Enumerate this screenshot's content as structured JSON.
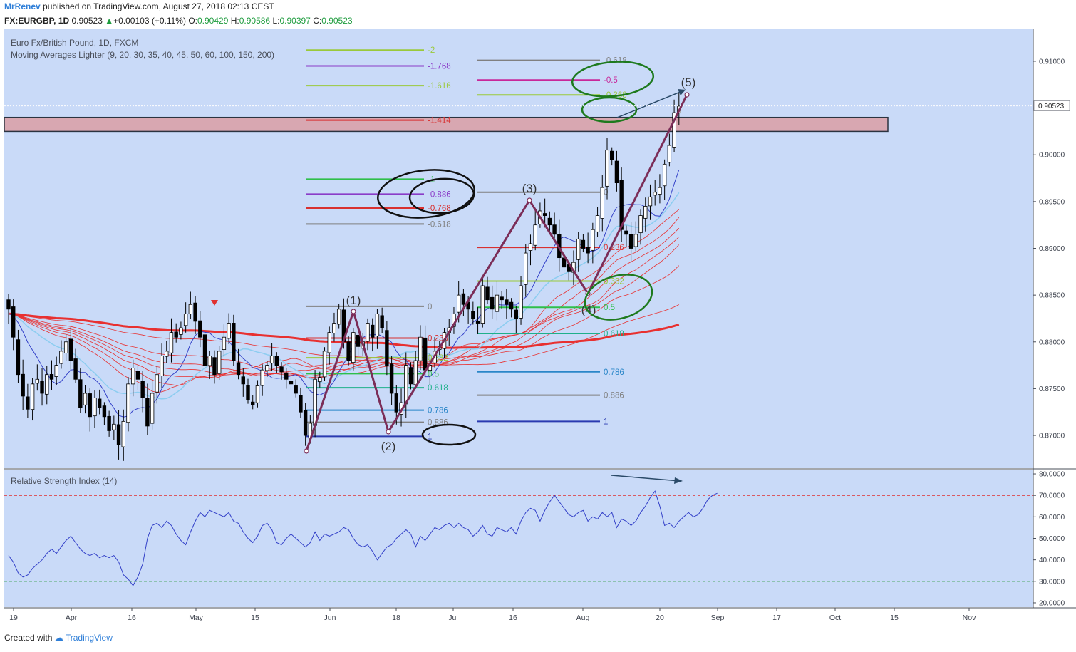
{
  "header": {
    "author": "MrRenev",
    "published_text": "published on TradingView.com, August 27, 2018 02:13 CEST",
    "symbol": "FX:EURGBP, 1D",
    "last": "0.90523",
    "change": "+0.00103 (+0.11%)",
    "open_label": "O:",
    "open": "0.90429",
    "high_label": "H:",
    "high": "0.90586",
    "low_label": "L:",
    "low": "0.90397",
    "close_label": "C:",
    "close": "0.90523"
  },
  "legend": {
    "title": "Euro Fx/British Pound, 1D, FXCM",
    "indicator": "Moving Averages Lighter (9, 20, 30, 35, 40, 45, 50, 60, 100, 150, 200)",
    "rsi": "Relative Strength Index (14)"
  },
  "footer": {
    "created_with": "Created with",
    "brand": "TradingView"
  },
  "colors": {
    "background": "#c9daf8",
    "candle_up": "#ffffff",
    "candle_down": "#000000",
    "ma_fast": "#3340c8",
    "ma_light": "#8ccdf0",
    "ma_red": "#e83030",
    "wave_line": "#7b2d58",
    "zone": "#d8a7b1",
    "rsi_line": "#3340c8"
  },
  "chart_data": [
    {
      "type": "candlestick",
      "symbol": "FX:EURGBP",
      "timeframe": "1D",
      "ylim": [
        0.8665,
        0.9135
      ],
      "y_ticks": [
        "0.91000",
        "0.90500",
        "0.90000",
        "0.89500",
        "0.89000",
        "0.88500",
        "0.88000",
        "0.87500",
        "0.87000"
      ],
      "last_price_label": "0.90523",
      "x_ticks": [
        "19",
        "Apr",
        "16",
        "May",
        "15",
        "Jun",
        "18",
        "Jul",
        "16",
        "Aug",
        "20",
        "Sep",
        "17",
        "Oct",
        "15",
        "Nov"
      ],
      "closes": [
        0.8835,
        0.8805,
        0.8765,
        0.8742,
        0.8728,
        0.8755,
        0.876,
        0.8745,
        0.8765,
        0.876,
        0.8775,
        0.879,
        0.88,
        0.878,
        0.876,
        0.873,
        0.8745,
        0.872,
        0.874,
        0.873,
        0.872,
        0.8705,
        0.8712,
        0.869,
        0.8715,
        0.8755,
        0.8772,
        0.876,
        0.874,
        0.871,
        0.8745,
        0.8765,
        0.8785,
        0.879,
        0.881,
        0.8805,
        0.8815,
        0.883,
        0.884,
        0.8822,
        0.8805,
        0.8775,
        0.8785,
        0.8765,
        0.879,
        0.8805,
        0.882,
        0.878,
        0.8765,
        0.8755,
        0.8738,
        0.8733,
        0.8753,
        0.877,
        0.8775,
        0.8785,
        0.8775,
        0.8768,
        0.876,
        0.8755,
        0.8745,
        0.8725,
        0.87,
        0.8713,
        0.876,
        0.8762,
        0.879,
        0.881,
        0.882,
        0.8835,
        0.88,
        0.878,
        0.881,
        0.8795,
        0.88,
        0.882,
        0.8805,
        0.883,
        0.8815,
        0.8775,
        0.8745,
        0.8725,
        0.8735,
        0.8775,
        0.8755,
        0.878,
        0.8805,
        0.877,
        0.8775,
        0.879,
        0.8795,
        0.881,
        0.8815,
        0.883,
        0.885,
        0.884,
        0.8835,
        0.8825,
        0.882,
        0.886,
        0.8845,
        0.8835,
        0.885,
        0.8845,
        0.884,
        0.8835,
        0.8825,
        0.886,
        0.8895,
        0.8905,
        0.8925,
        0.894,
        0.8935,
        0.8925,
        0.8915,
        0.889,
        0.888,
        0.8875,
        0.8885,
        0.891,
        0.89,
        0.8895,
        0.892,
        0.8935,
        0.8965,
        0.9005,
        0.8995,
        0.897,
        0.892,
        0.8915,
        0.89,
        0.8915,
        0.8935,
        0.8945,
        0.8955,
        0.896,
        0.8965,
        0.899,
        0.901,
        0.9045,
        0.9052
      ],
      "annotations": {
        "wave_labels": [
          "(1)",
          "(2)",
          "(3)",
          "(4)",
          "(5)"
        ],
        "fib_set_a": {
          "levels": [
            "-2",
            "-1.768",
            "-1.616",
            "-1.414",
            "-1",
            "-0.886",
            "-0.768",
            "-0.618",
            "0",
            "0.236",
            "0.382",
            "0.5",
            "0.618",
            "0.786",
            "0.886",
            "1"
          ],
          "prices": [
            0.9112,
            0.9095,
            0.9074,
            0.9037,
            0.8974,
            0.8958,
            0.8943,
            0.8926,
            0.8838,
            0.8804,
            0.8783,
            0.8766,
            0.8751,
            0.8727,
            0.8714,
            0.8699
          ]
        },
        "fib_set_b": {
          "levels": [
            "-0.618",
            "-0.5",
            "-0.368",
            "0",
            "0.236",
            "0.382",
            "0.5",
            "0.618",
            "0.786",
            "0.886",
            "1"
          ],
          "prices": [
            0.9101,
            0.908,
            0.9064,
            0.896,
            0.8901,
            0.8865,
            0.8837,
            0.8809,
            0.8768,
            0.8743,
            0.8715
          ]
        },
        "resistance_zone": [
          0.9025,
          0.904
        ]
      }
    },
    {
      "type": "line",
      "title": "Relative Strength Index (14)",
      "ylim": [
        18,
        82
      ],
      "y_ticks": [
        "80.0000",
        "70.0000",
        "60.0000",
        "50.0000",
        "40.0000",
        "30.0000",
        "20.0000"
      ],
      "bands": [
        70,
        30
      ],
      "values": [
        42,
        39,
        34,
        32,
        33,
        36,
        38,
        40,
        43,
        45,
        43,
        46,
        49,
        51,
        48,
        45,
        43,
        42,
        43,
        41,
        42,
        41,
        42,
        39,
        33,
        31,
        28,
        32,
        38,
        50,
        56,
        57,
        55,
        58,
        56,
        52,
        49,
        47,
        53,
        58,
        62,
        60,
        63,
        62,
        61,
        60,
        62,
        58,
        57,
        53,
        50,
        48,
        51,
        56,
        57,
        54,
        48,
        47,
        50,
        52,
        50,
        48,
        46,
        48,
        53,
        49,
        52,
        51,
        52,
        53,
        55,
        54,
        50,
        47,
        46,
        47,
        44,
        40,
        43,
        46,
        47,
        50,
        52,
        54,
        52,
        46,
        51,
        49,
        52,
        55,
        54,
        56,
        57,
        55,
        57,
        55,
        54,
        51,
        53,
        56,
        52,
        51,
        55,
        54,
        53,
        55,
        52,
        58,
        62,
        64,
        63,
        58,
        63,
        67,
        70,
        67,
        64,
        61,
        60,
        62,
        63,
        58,
        60,
        59,
        62,
        60,
        62,
        55,
        59,
        58,
        56,
        58,
        62,
        65,
        69,
        72,
        65,
        56,
        57,
        55,
        58,
        60,
        62,
        60,
        61,
        64,
        68,
        70,
        71
      ]
    }
  ]
}
